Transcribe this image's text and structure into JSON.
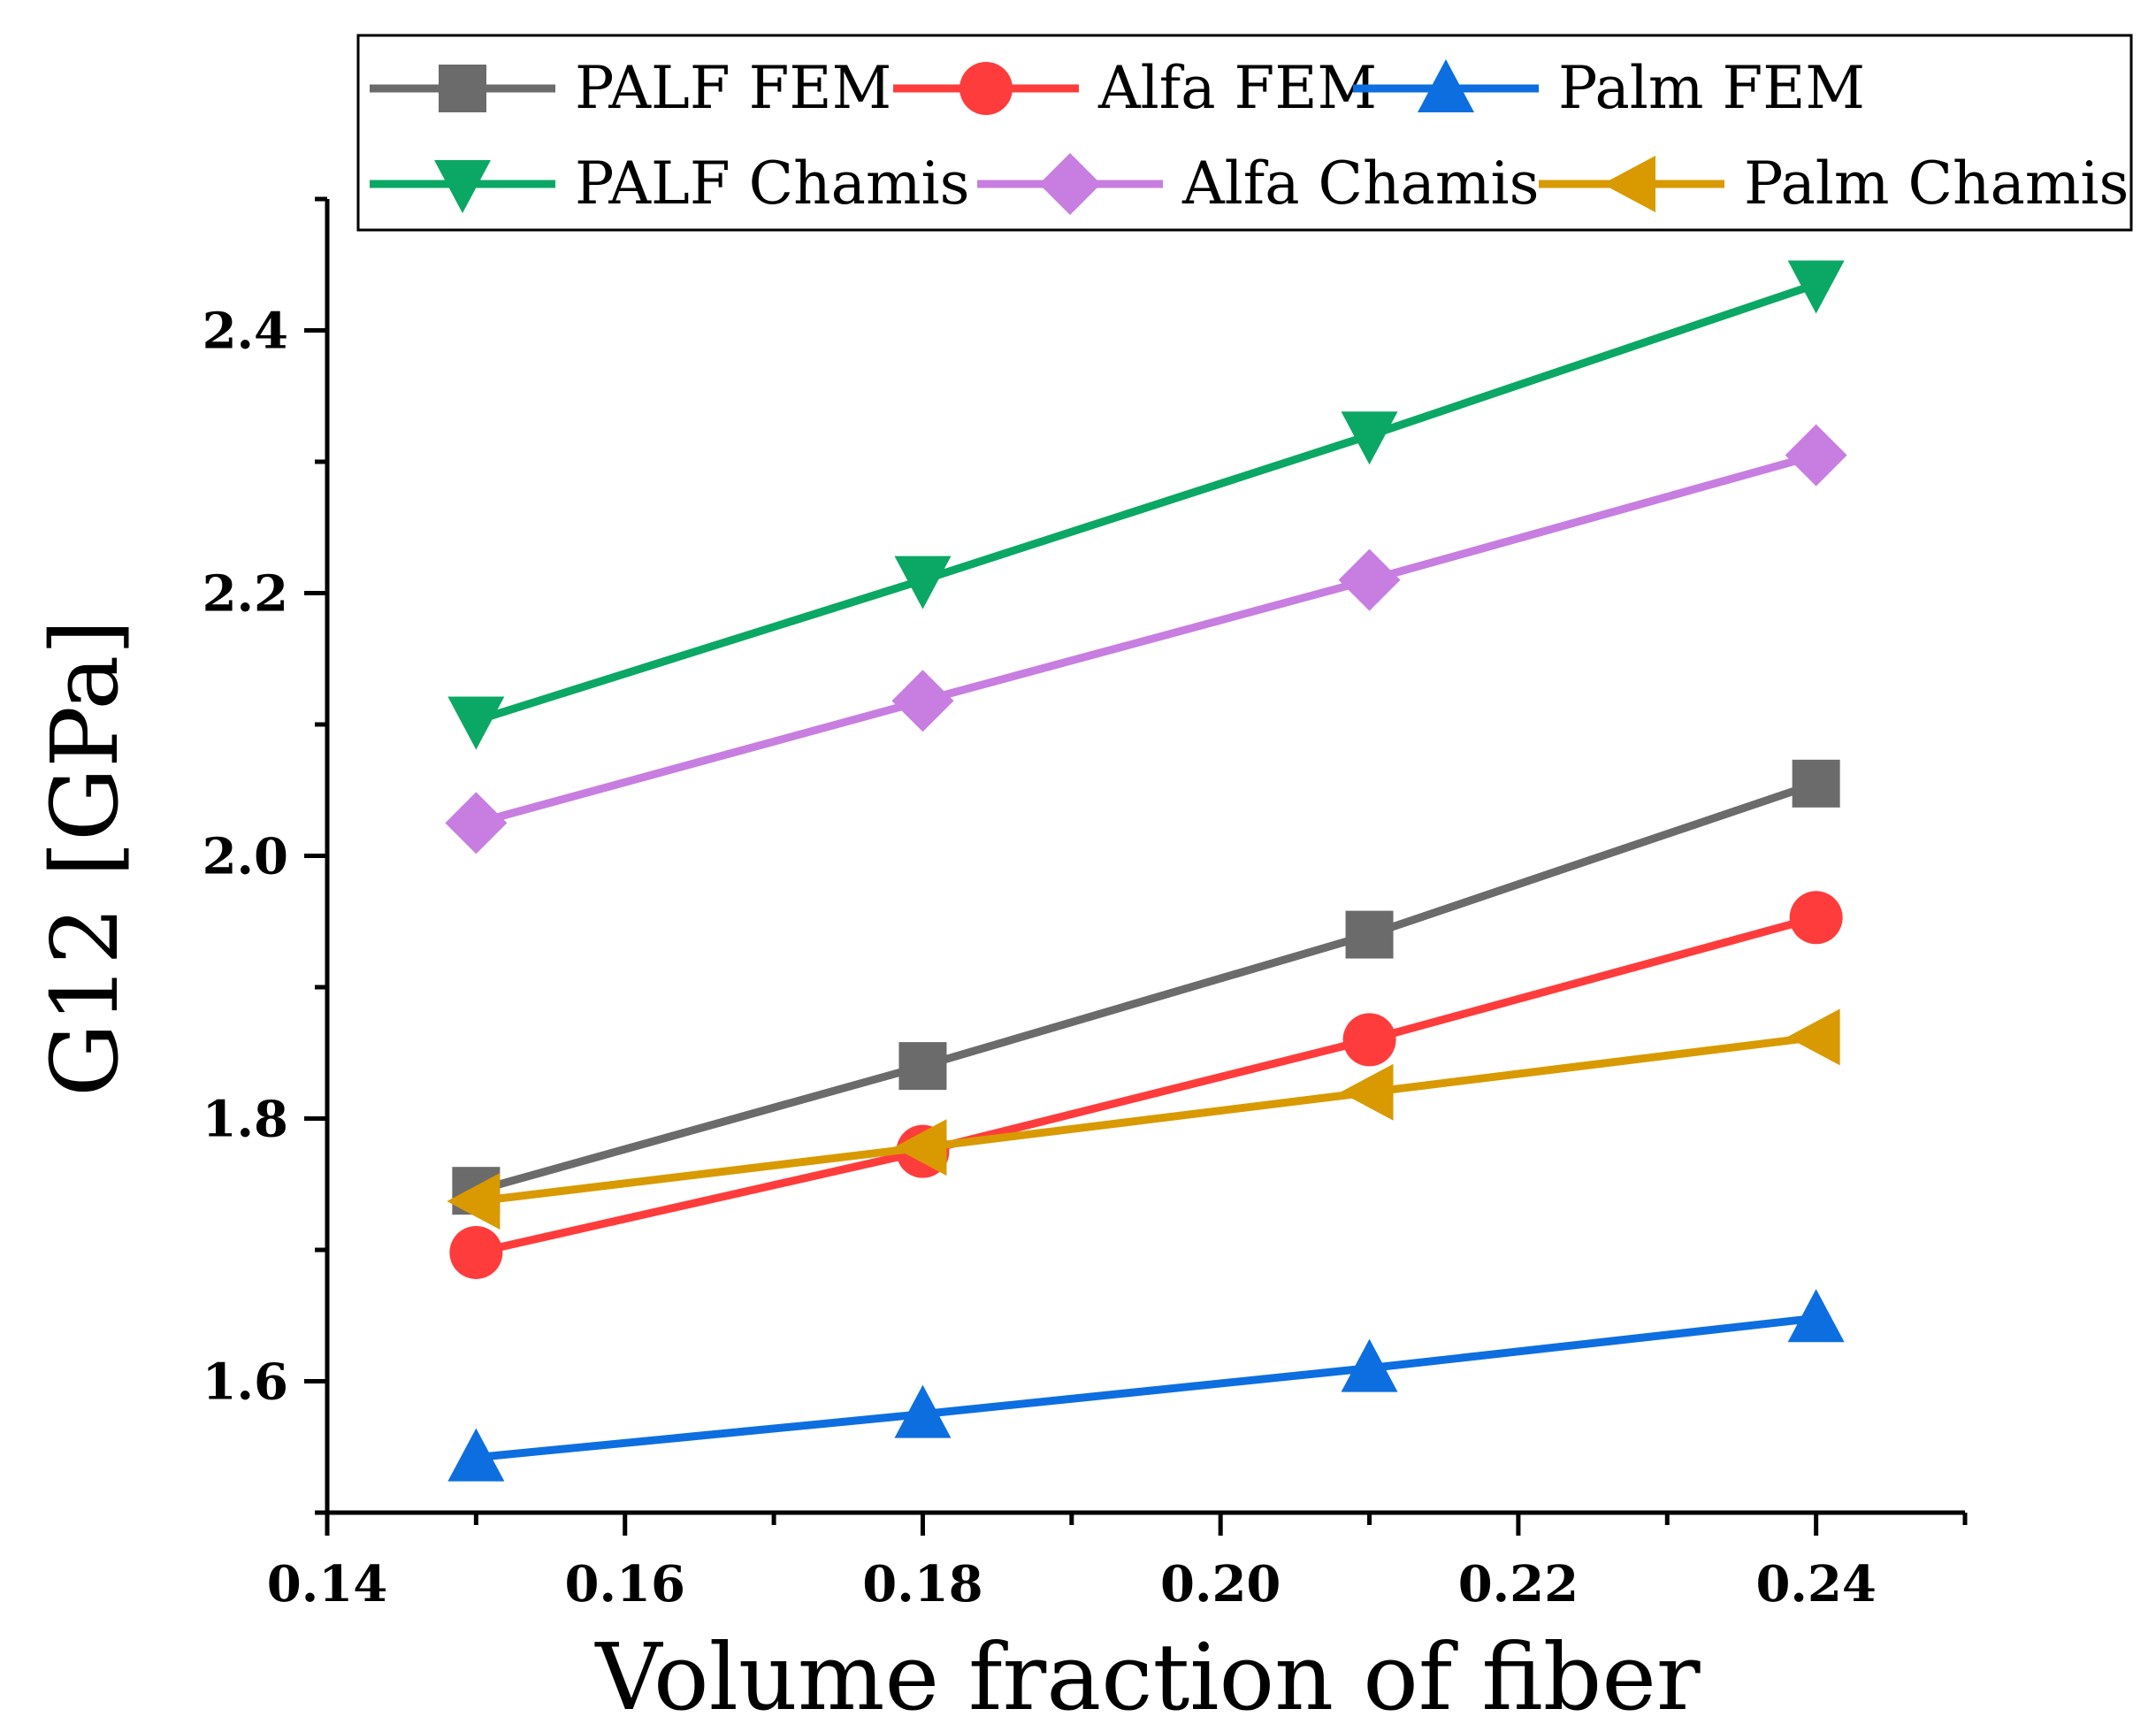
{
  "chart_data": {
    "type": "line",
    "title": "",
    "xlabel": "Volume fraction of  fiber",
    "ylabel": "G12 [GPa]",
    "xlim": [
      0.14,
      0.25
    ],
    "ylim": [
      1.5,
      2.5
    ],
    "xticks": [
      0.14,
      0.16,
      0.18,
      0.2,
      0.22,
      0.24
    ],
    "xtick_labels": [
      "0.14",
      "0.16",
      "0.18",
      "0.20",
      "0.22",
      "0.24"
    ],
    "yticks": [
      1.6,
      1.8,
      2.0,
      2.2,
      2.4
    ],
    "ytick_labels": [
      "1.6",
      "1.8",
      "2.0",
      "2.2",
      "2.4"
    ],
    "grid": false,
    "legend_position": "top",
    "x": [
      0.15,
      0.18,
      0.21,
      0.24
    ],
    "series": [
      {
        "name": "PALF FEM",
        "values": [
          1.745,
          1.84,
          1.94,
          2.055
        ],
        "color": "#6b6b6b",
        "marker": "square"
      },
      {
        "name": "Alfa FEM",
        "values": [
          1.698,
          1.775,
          1.86,
          1.953
        ],
        "color": "#ff3c3c",
        "marker": "circle"
      },
      {
        "name": "Palm FEM",
        "values": [
          1.542,
          1.575,
          1.61,
          1.648
        ],
        "color": "#0d6ee0",
        "marker": "triangle-up"
      },
      {
        "name": "PALF Chamis",
        "values": [
          2.103,
          2.21,
          2.32,
          2.435
        ],
        "color": "#0aa864",
        "marker": "triangle-down"
      },
      {
        "name": "Alfa Chamis",
        "values": [
          2.025,
          2.118,
          2.21,
          2.305
        ],
        "color": "#c77ee0",
        "marker": "diamond"
      },
      {
        "name": "Palm Chamis",
        "values": [
          1.737,
          1.778,
          1.82,
          1.862
        ],
        "color": "#d89a00",
        "marker": "triangle-left"
      }
    ]
  }
}
